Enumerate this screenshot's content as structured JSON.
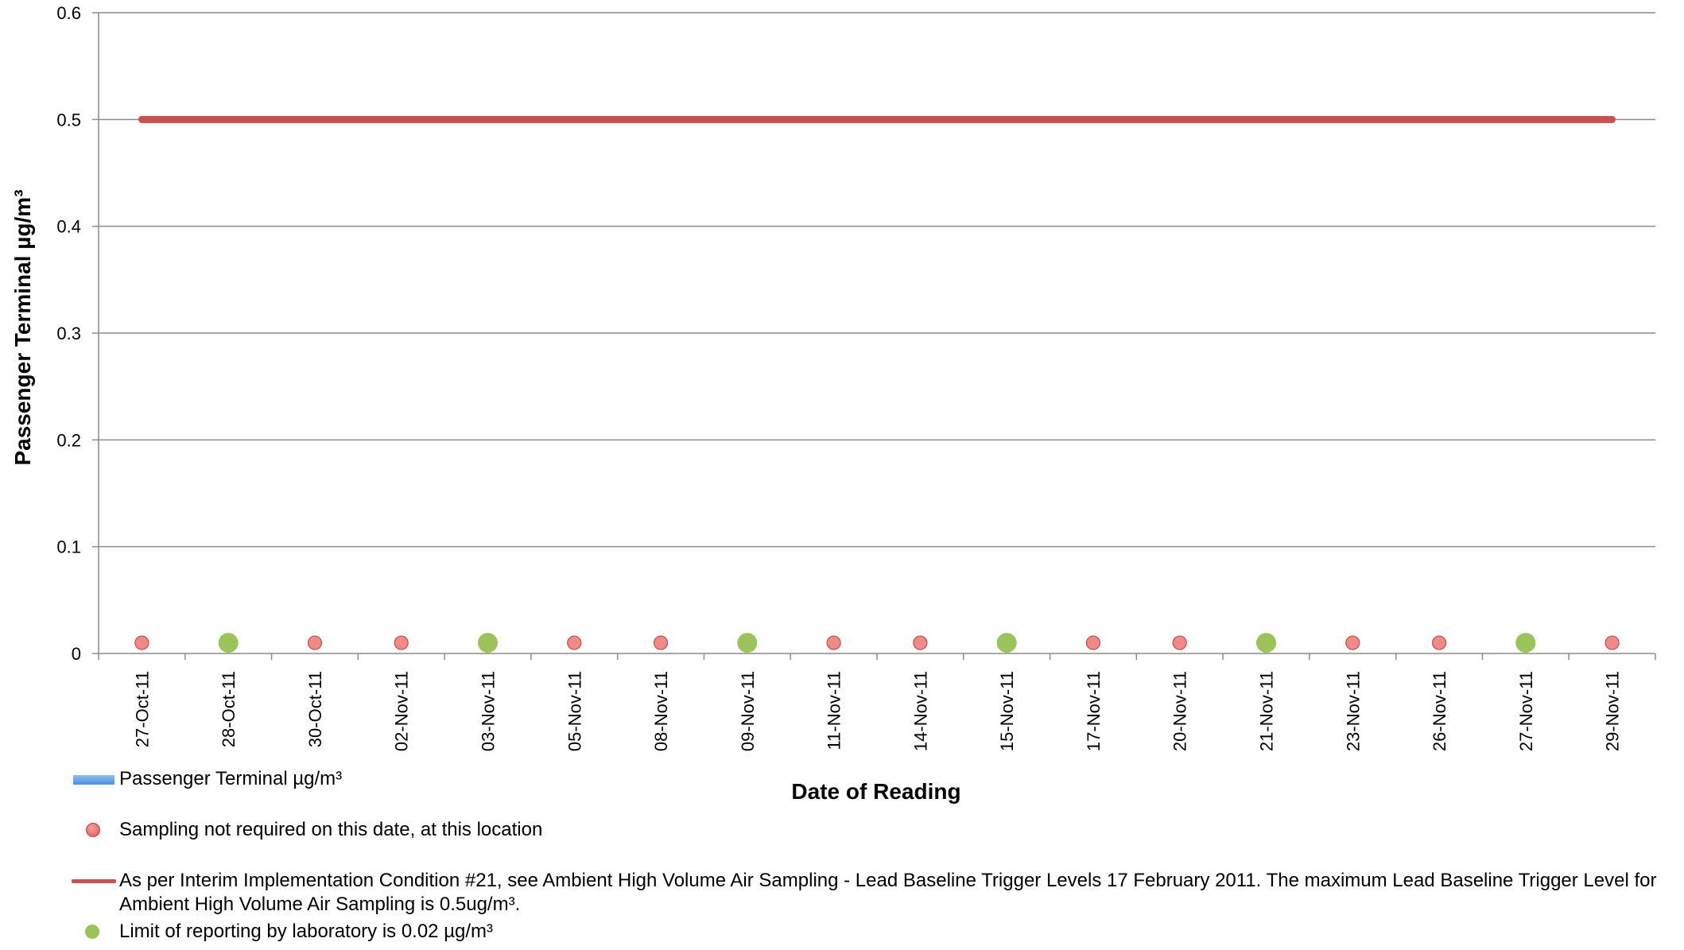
{
  "chart_data": {
    "type": "line",
    "xlabel": "Date of Reading",
    "ylabel": "Passenger Terminal µg/m³",
    "ylim": [
      0,
      0.6
    ],
    "yticks": [
      "0",
      "0.1",
      "0.2",
      "0.3",
      "0.4",
      "0.5",
      "0.6"
    ],
    "grid": true,
    "categories": [
      "27-Oct-11",
      "28-Oct-11",
      "30-Oct-11",
      "02-Nov-11",
      "03-Nov-11",
      "05-Nov-11",
      "08-Nov-11",
      "09-Nov-11",
      "11-Nov-11",
      "14-Nov-11",
      "15-Nov-11",
      "17-Nov-11",
      "20-Nov-11",
      "21-Nov-11",
      "23-Nov-11",
      "26-Nov-11",
      "27-Nov-11",
      "29-Nov-11"
    ],
    "series": [
      {
        "name": "Passenger Terminal µg/m³",
        "kind": "bar",
        "color": "#5b9bd5",
        "values": [
          null,
          null,
          null,
          null,
          null,
          null,
          null,
          null,
          null,
          null,
          null,
          null,
          null,
          null,
          null,
          null,
          null,
          null
        ]
      },
      {
        "name": "Sampling not required on this date, at this location",
        "kind": "marker",
        "color": "#e06666",
        "values": [
          0.01,
          null,
          0.01,
          0.01,
          null,
          0.01,
          0.01,
          null,
          0.01,
          0.01,
          null,
          0.01,
          0.01,
          null,
          0.01,
          0.01,
          null,
          0.01
        ]
      },
      {
        "name": "As per Interim Implementation Condition #21, see Ambient High Volume Air Sampling - Lead Baseline Trigger Levels 17 February 2011. The maximum Lead Baseline Trigger Level for Ambient High Volume Air Sampling is 0.5ug/m³.",
        "kind": "line",
        "color": "#c85250",
        "values": [
          0.5,
          0.5,
          0.5,
          0.5,
          0.5,
          0.5,
          0.5,
          0.5,
          0.5,
          0.5,
          0.5,
          0.5,
          0.5,
          0.5,
          0.5,
          0.5,
          0.5,
          0.5
        ]
      },
      {
        "name": "Limit of reporting by laboratory is 0.02 µg/m³",
        "kind": "marker",
        "color": "#9bc35a",
        "values": [
          null,
          0.01,
          null,
          null,
          0.01,
          null,
          null,
          0.01,
          null,
          null,
          0.01,
          null,
          null,
          0.01,
          null,
          null,
          0.01,
          null
        ]
      }
    ],
    "legend_position": "bottom-left"
  }
}
